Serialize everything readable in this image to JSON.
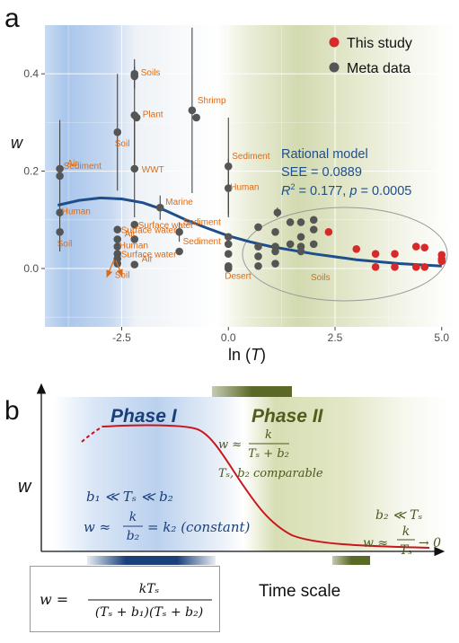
{
  "panel_a": {
    "letter": "a",
    "ylabel": "w",
    "xlabel_pre": "ln (",
    "xlabel_var": "T",
    "xlabel_post": ")",
    "x_ticks": [
      "-2.5",
      "0.0",
      "2.5",
      "5.0"
    ],
    "y_ticks": [
      "0.0",
      "0.2",
      "0.4"
    ],
    "legend": [
      {
        "label": "This study",
        "color": "#d62a2a"
      },
      {
        "label": "Meta data",
        "color": "#555555"
      }
    ],
    "model_title": "Rational model",
    "see_text": "SEE = 0.0889",
    "r2_r": "R",
    "r2_sup": "2",
    "r2_rest": " = 0.177, ",
    "r2_p": "p",
    "r2_pval": " = 0.0005",
    "ellipse_label": "Soils"
  },
  "panel_b": {
    "letter": "b",
    "ylabel": "w",
    "xlabel": "Time scale",
    "phase1_title": "Phase I",
    "phase2_title": "Phase II",
    "phase1_cond": "b₁ ≪ Tₛ ≪ b₂",
    "phase1_eq_lhs": "w ≈",
    "phase1_eq_num": "k",
    "phase1_eq_den": "b₂",
    "phase1_eq_rhs": "= k₂ (constant)",
    "phase2_eq_lhs": "w ≈",
    "phase2_eq_num": "k",
    "phase2_eq_den": "Tₛ + b₂",
    "phase2_cond": "Tₛ, b₂ comparable",
    "phase3_cond": "b₂ ≪ Tₛ",
    "phase3_eq_lhs": "w ≈",
    "phase3_eq_num": "k",
    "phase3_eq_den": "Tₛ",
    "phase3_eq_rhs": "→ 0",
    "formula_lhs": "w =",
    "formula_num": "kTₛ",
    "formula_den": "(Tₛ + b₁)(Tₛ + b₂)",
    "colors": {
      "phase1": "#1a3f7a",
      "phase2": "#5a6a26",
      "curve": "#c8161d"
    }
  },
  "chart_data": [
    {
      "type": "scatter",
      "xlabel": "ln (T)",
      "ylabel": "w",
      "xlim": [
        -4.3,
        5.3
      ],
      "ylim": [
        -0.12,
        0.5
      ],
      "x_ticks": [
        -2.5,
        0.0,
        2.5,
        5.0
      ],
      "y_ticks": [
        0.0,
        0.2,
        0.4
      ],
      "legend_position": "top-right",
      "grid": true,
      "series": [
        {
          "name": "Meta data",
          "color": "#555555",
          "points": [
            {
              "x": -3.95,
              "y": 0.205,
              "err": 0.1,
              "label": "Air"
            },
            {
              "x": -3.95,
              "y": 0.19,
              "label": "Sediment"
            },
            {
              "x": -3.95,
              "y": 0.115,
              "label": "Human"
            },
            {
              "x": -3.95,
              "y": 0.075,
              "err": 0.04,
              "label": "Soil"
            },
            {
              "x": -2.6,
              "y": 0.28,
              "err": 0.12,
              "label": "Soil"
            },
            {
              "x": -2.2,
              "y": 0.4,
              "err": 0.03,
              "label": "Soils"
            },
            {
              "x": -2.2,
              "y": 0.395
            },
            {
              "x": -2.2,
              "y": 0.315,
              "err": 0.1,
              "label": "Plant"
            },
            {
              "x": -2.15,
              "y": 0.31
            },
            {
              "x": -2.2,
              "y": 0.205,
              "err": 0.1,
              "label": "WWT"
            },
            {
              "x": -2.6,
              "y": 0.08,
              "label": "Surface water"
            },
            {
              "x": -2.6,
              "y": 0.06,
              "label": "Air"
            },
            {
              "x": -2.6,
              "y": 0.045,
              "label": "Human"
            },
            {
              "x": -2.6,
              "y": 0.03,
              "label": "Surface water"
            },
            {
              "x": -2.6,
              "y": 0.02
            },
            {
              "x": -2.6,
              "y": 0.01,
              "label": "Soil"
            },
            {
              "x": -2.2,
              "y": 0.09,
              "label": "Surface water"
            },
            {
              "x": -2.2,
              "y": 0.06
            },
            {
              "x": -2.2,
              "y": 0.008,
              "label": "Air"
            },
            {
              "x": -1.6,
              "y": 0.125,
              "err": 0.025,
              "label": "Marine"
            },
            {
              "x": -1.15,
              "y": 0.075,
              "err": 0.02,
              "label": "Sediment"
            },
            {
              "x": -1.15,
              "y": 0.035,
              "label": "Sediment"
            },
            {
              "x": -0.85,
              "y": 0.325,
              "err": 0.17,
              "label": "Shrimp"
            },
            {
              "x": -0.75,
              "y": 0.31
            },
            {
              "x": 0.0,
              "y": 0.21,
              "err": 0.1,
              "label": "Sediment"
            },
            {
              "x": 0.0,
              "y": 0.165,
              "err": 0.06,
              "label": "Human"
            },
            {
              "x": 0.0,
              "y": 0.065
            },
            {
              "x": 0.0,
              "y": 0.05
            },
            {
              "x": 0.0,
              "y": 0.03
            },
            {
              "x": 0.0,
              "y": 0.005,
              "label": "Desert"
            },
            {
              "x": 0.0,
              "y": 0.0
            },
            {
              "x": 0.7,
              "y": 0.085
            },
            {
              "x": 0.7,
              "y": 0.045
            },
            {
              "x": 0.7,
              "y": 0.025
            },
            {
              "x": 0.7,
              "y": 0.005
            },
            {
              "x": 1.1,
              "y": 0.075
            },
            {
              "x": 1.1,
              "y": 0.045
            },
            {
              "x": 1.1,
              "y": 0.035
            },
            {
              "x": 1.1,
              "y": 0.01
            },
            {
              "x": 1.15,
              "y": 0.115,
              "err": 0.01
            },
            {
              "x": 1.45,
              "y": 0.095
            },
            {
              "x": 1.45,
              "y": 0.05
            },
            {
              "x": 1.7,
              "y": 0.095
            },
            {
              "x": 1.7,
              "y": 0.065
            },
            {
              "x": 1.7,
              "y": 0.045
            },
            {
              "x": 1.7,
              "y": 0.035
            },
            {
              "x": 2.0,
              "y": 0.1
            },
            {
              "x": 2.0,
              "y": 0.08
            },
            {
              "x": 2.0,
              "y": 0.05
            }
          ]
        },
        {
          "name": "This study",
          "color": "#d62a2a",
          "points": [
            {
              "x": 2.35,
              "y": 0.075
            },
            {
              "x": 3.0,
              "y": 0.04
            },
            {
              "x": 3.45,
              "y": 0.03
            },
            {
              "x": 3.45,
              "y": 0.003
            },
            {
              "x": 3.9,
              "y": 0.03
            },
            {
              "x": 3.9,
              "y": 0.003
            },
            {
              "x": 4.4,
              "y": 0.045
            },
            {
              "x": 4.4,
              "y": 0.003
            },
            {
              "x": 4.6,
              "y": 0.043
            },
            {
              "x": 4.6,
              "y": 0.003
            },
            {
              "x": 5.0,
              "y": 0.028
            },
            {
              "x": 5.0,
              "y": 0.02
            },
            {
              "x": 5.0,
              "y": 0.015
            }
          ]
        },
        {
          "name": "Rational model",
          "type": "line",
          "color": "#1f4e8c",
          "points": [
            {
              "x": -4.0,
              "y": 0.13
            },
            {
              "x": -3.5,
              "y": 0.14
            },
            {
              "x": -3.0,
              "y": 0.145
            },
            {
              "x": -2.5,
              "y": 0.143
            },
            {
              "x": -2.0,
              "y": 0.135
            },
            {
              "x": -1.5,
              "y": 0.12
            },
            {
              "x": -1.0,
              "y": 0.1
            },
            {
              "x": -0.5,
              "y": 0.083
            },
            {
              "x": 0.0,
              "y": 0.067
            },
            {
              "x": 0.5,
              "y": 0.055
            },
            {
              "x": 1.0,
              "y": 0.045
            },
            {
              "x": 2.0,
              "y": 0.03
            },
            {
              "x": 3.0,
              "y": 0.018
            },
            {
              "x": 4.0,
              "y": 0.01
            },
            {
              "x": 5.0,
              "y": 0.005
            }
          ]
        }
      ]
    }
  ]
}
